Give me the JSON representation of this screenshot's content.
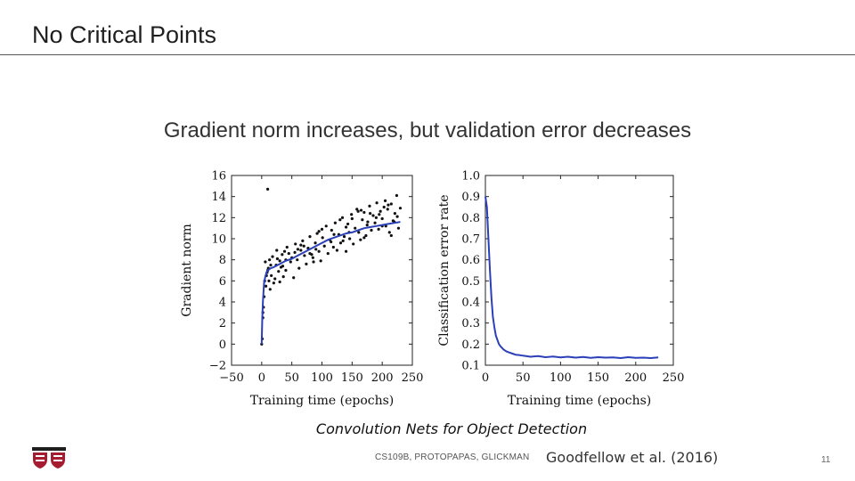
{
  "slide": {
    "title": "No Critical Points",
    "subtitle": "Gradient norm increases, but validation error decreases",
    "caption": "Convolution Nets for Object Detection",
    "course": "CS109B, PROTOPAPAS, GLICKMAN",
    "citation": "Goodfellow et al. (2016)",
    "page_number": "11"
  },
  "logo": {
    "icon": "harvard-shield-icon",
    "colors": [
      "#a51c30",
      "#1e1e1e"
    ]
  },
  "chart_data": [
    {
      "type": "scatter",
      "xlabel": "Training time (epochs)",
      "ylabel": "Gradient norm",
      "xlim": [
        -50,
        250
      ],
      "ylim": [
        -2,
        16
      ],
      "xticks": [
        -50,
        0,
        50,
        100,
        150,
        200,
        250
      ],
      "yticks": [
        -2,
        0,
        2,
        4,
        6,
        8,
        10,
        12,
        14,
        16
      ],
      "grid": false,
      "series": [
        {
          "kind": "points",
          "color": "#111111",
          "x": [
            0,
            1,
            2,
            2,
            3,
            4,
            5,
            6,
            7,
            8,
            9,
            10,
            11,
            12,
            13,
            14,
            15,
            16,
            18,
            20,
            22,
            24,
            26,
            28,
            30,
            32,
            34,
            36,
            38,
            40,
            42,
            45,
            48,
            50,
            53,
            56,
            59,
            62,
            65,
            68,
            71,
            74,
            77,
            80,
            83,
            86,
            89,
            92,
            95,
            98,
            101,
            104,
            107,
            110,
            113,
            116,
            119,
            122,
            125,
            128,
            131,
            134,
            137,
            140,
            143,
            146,
            149,
            152,
            155,
            158,
            161,
            164,
            167,
            170,
            173,
            176,
            179,
            182,
            185,
            188,
            191,
            194,
            197,
            200,
            203,
            206,
            209,
            212,
            215,
            218,
            221,
            224,
            227,
            230,
            10,
            25,
            35,
            55,
            70,
            85,
            100,
            115,
            130,
            145,
            160,
            175,
            190,
            205,
            220,
            60,
            90,
            120,
            150,
            180,
            210,
            40,
            80,
            140,
            170,
            200,
            225,
            30,
            65,
            95,
            135,
            165,
            195,
            215
          ],
          "y": [
            0.0,
            0.5,
            2.5,
            3.0,
            3.5,
            4.5,
            6.0,
            7.8,
            5.5,
            6.5,
            6.8,
            14.7,
            7.2,
            6.0,
            8.0,
            5.2,
            7.5,
            6.5,
            8.3,
            5.8,
            6.2,
            7.5,
            8.1,
            6.9,
            5.9,
            7.3,
            8.5,
            6.4,
            8.8,
            7.0,
            9.2,
            8.6,
            7.8,
            8.2,
            6.3,
            9.5,
            8.0,
            7.2,
            8.9,
            9.8,
            8.4,
            7.6,
            9.1,
            10.2,
            8.5,
            7.8,
            9.6,
            10.5,
            8.8,
            7.9,
            10.1,
            9.3,
            11.2,
            8.6,
            9.9,
            10.8,
            9.2,
            11.5,
            8.9,
            10.4,
            9.6,
            12.0,
            10.2,
            8.8,
            11.4,
            10.0,
            12.3,
            9.5,
            11.0,
            12.8,
            10.6,
            9.9,
            11.8,
            12.5,
            10.3,
            11.6,
            13.1,
            10.8,
            12.2,
            11.5,
            13.4,
            10.9,
            12.6,
            11.9,
            13.0,
            11.2,
            12.8,
            10.6,
            13.3,
            11.7,
            12.4,
            14.1,
            11.0,
            12.9,
            7.0,
            8.9,
            7.4,
            8.7,
            9.3,
            8.2,
            10.9,
            9.7,
            11.8,
            10.6,
            12.6,
            11.3,
            12.0,
            13.6,
            11.6,
            9.0,
            9.0,
            10.4,
            11.9,
            12.4,
            13.2,
            8.0,
            8.6,
            11.1,
            10.1,
            11.2,
            12.1,
            7.9,
            9.4,
            10.7,
            9.8,
            12.7,
            12.3,
            10.3
          ]
        },
        {
          "kind": "line",
          "color": "#2a3fb8",
          "x": [
            0,
            1,
            2,
            3,
            4,
            6,
            8,
            10,
            15,
            20,
            30,
            40,
            50,
            60,
            70,
            80,
            90,
            100,
            110,
            120,
            130,
            140,
            150,
            160,
            170,
            180,
            190,
            200,
            210,
            220,
            230
          ],
          "y": [
            0.0,
            2.5,
            4.0,
            5.0,
            5.8,
            6.4,
            6.8,
            7.0,
            7.2,
            7.3,
            7.6,
            7.9,
            8.1,
            8.4,
            8.7,
            9.0,
            9.3,
            9.6,
            9.9,
            10.1,
            10.3,
            10.5,
            10.6,
            10.8,
            11.0,
            11.1,
            11.2,
            11.3,
            11.4,
            11.5,
            11.6
          ]
        }
      ]
    },
    {
      "type": "line",
      "xlabel": "Training time (epochs)",
      "ylabel": "Classification error rate",
      "xlim": [
        0,
        250
      ],
      "ylim": [
        0.1,
        1.0
      ],
      "xticks": [
        0,
        50,
        100,
        150,
        200,
        250
      ],
      "yticks": [
        0.1,
        0.2,
        0.3,
        0.4,
        0.5,
        0.6,
        0.7,
        0.8,
        0.9,
        1.0
      ],
      "ytick_labels": [
        "0.1",
        "0.2",
        "0.3",
        "0.4",
        "0.5",
        "0.6",
        "0.7",
        "0.8",
        "0.9",
        "1.0"
      ],
      "grid": false,
      "series": [
        {
          "color": "#2a3fb8",
          "x": [
            0,
            2,
            4,
            6,
            8,
            10,
            12,
            14,
            16,
            18,
            20,
            24,
            28,
            32,
            36,
            40,
            45,
            50,
            60,
            70,
            80,
            90,
            100,
            110,
            120,
            130,
            140,
            150,
            160,
            170,
            180,
            190,
            200,
            210,
            220,
            230
          ],
          "y": [
            0.9,
            0.85,
            0.7,
            0.55,
            0.42,
            0.33,
            0.28,
            0.24,
            0.22,
            0.2,
            0.19,
            0.175,
            0.165,
            0.16,
            0.155,
            0.15,
            0.148,
            0.145,
            0.14,
            0.143,
            0.138,
            0.141,
            0.137,
            0.14,
            0.136,
            0.139,
            0.135,
            0.138,
            0.136,
            0.137,
            0.134,
            0.138,
            0.135,
            0.136,
            0.134,
            0.137
          ]
        }
      ]
    }
  ]
}
